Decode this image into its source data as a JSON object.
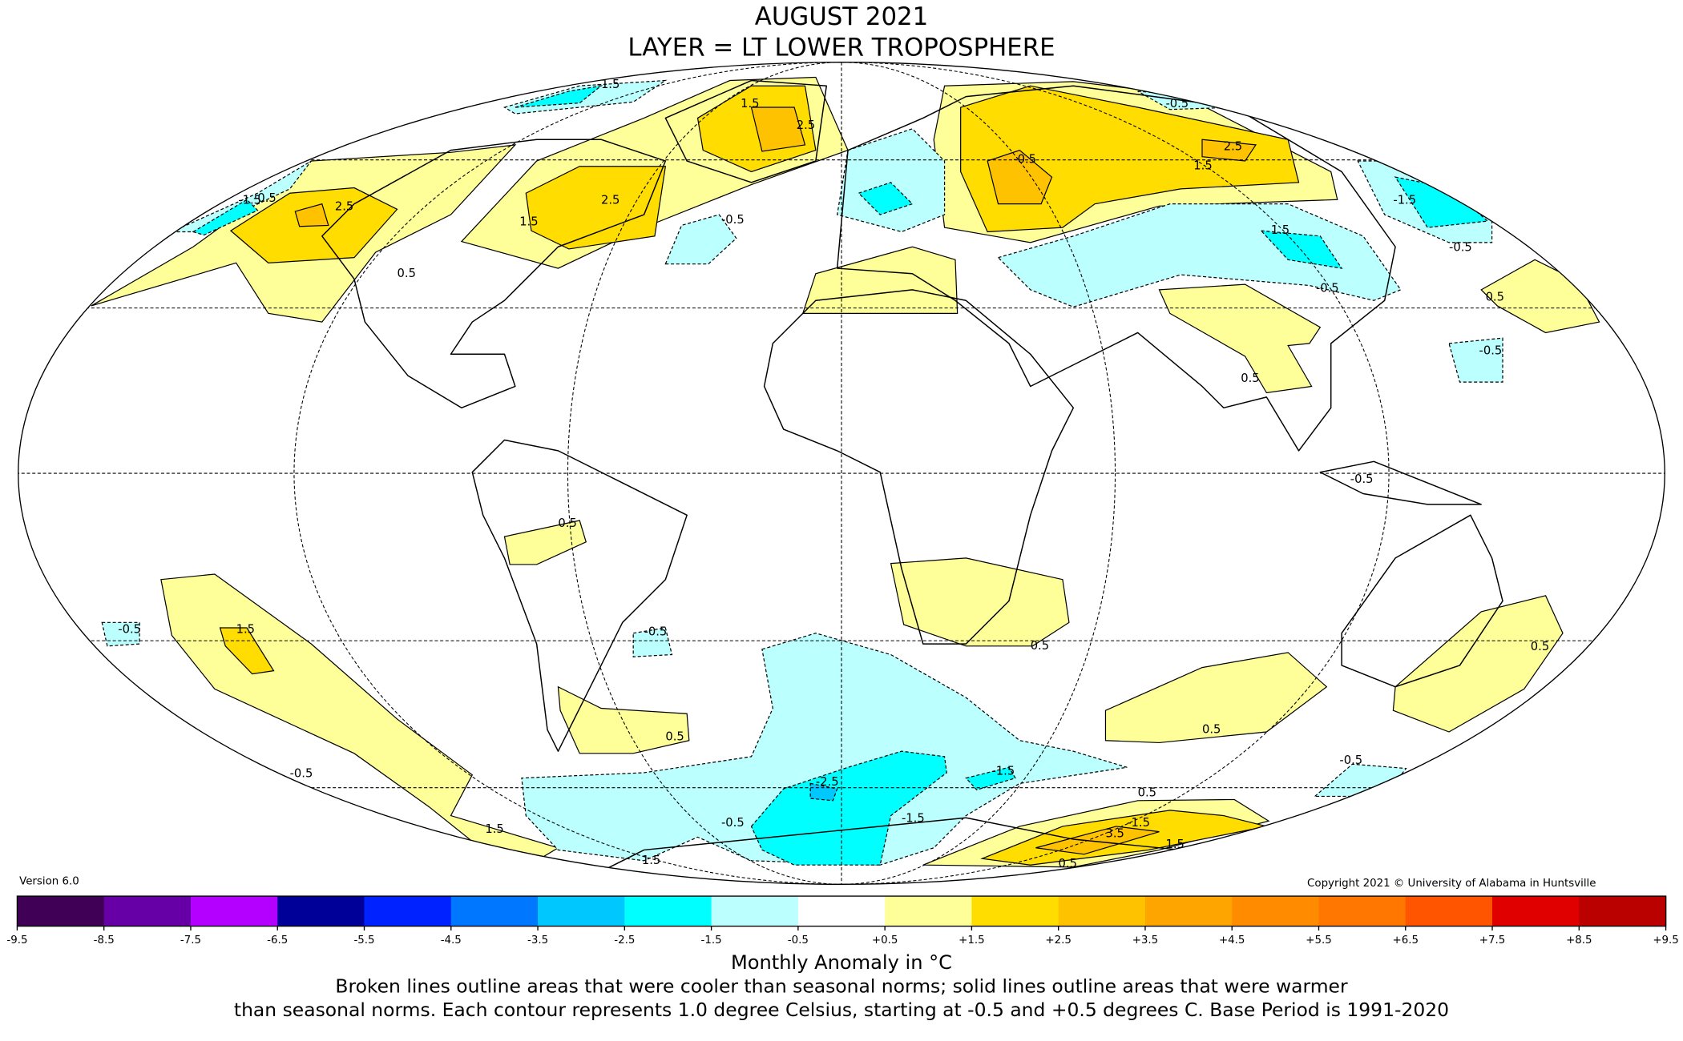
{
  "title": {
    "line1": "AUGUST 2021",
    "line2": "LAYER = LT LOWER TROPOSPHERE"
  },
  "version": "Version 6.0",
  "copyright": "Copyright 2021 © University of Alabama in Huntsville",
  "colorbar": {
    "label": "Monthly Anomaly in °C",
    "ticks": [
      "-9.5",
      "-8.5",
      "-7.5",
      "-6.5",
      "-5.5",
      "-4.5",
      "-3.5",
      "-2.5",
      "-1.5",
      "-0.5",
      "+0.5",
      "+1.5",
      "+2.5",
      "+3.5",
      "+4.5",
      "+5.5",
      "+6.5",
      "+7.5",
      "+8.5",
      "+9.5"
    ],
    "colors": [
      "#400055",
      "#6600a6",
      "#b300ff",
      "#000099",
      "#0022ff",
      "#0077ff",
      "#00c8ff",
      "#00ffff",
      "#bbffff",
      "#ffffff",
      "#ffff99",
      "#ffdd00",
      "#ffc200",
      "#ffa500",
      "#ff8c00",
      "#ff7700",
      "#ff5500",
      "#e00000",
      "#bb0000"
    ]
  },
  "caption": {
    "line1": "Broken lines outline areas that were cooler than seasonal norms; solid lines outline areas that were warmer",
    "line2": "than seasonal norms. Each contour represents 1.0 degree Celsius, starting at -0.5 and +0.5 degrees C. Base Period is 1991-2020"
  },
  "contour_labels": [
    "-1.5",
    "2.5",
    "-1.5",
    "-0.5",
    "0.5",
    "2.5",
    "1.5",
    "-0.5",
    "2.5",
    "1.5",
    "-0.5",
    "2.5",
    "1.5",
    "-1.5",
    "-0.5",
    "1.5",
    "-0.5",
    "0.5",
    "-0.5",
    "-0.5",
    "0.5",
    "-0.5",
    "1.5",
    "-0.5",
    "0.5",
    "0.5",
    "0.5",
    "0.5",
    "0.5",
    "-0.5",
    "-2.5",
    "-1.5",
    "-1.5",
    "-0.5",
    "1.5",
    "3.5",
    "1.5",
    "0.5",
    "-0.5",
    "1.5",
    "0.5",
    "-1.5",
    "-0.5"
  ]
}
